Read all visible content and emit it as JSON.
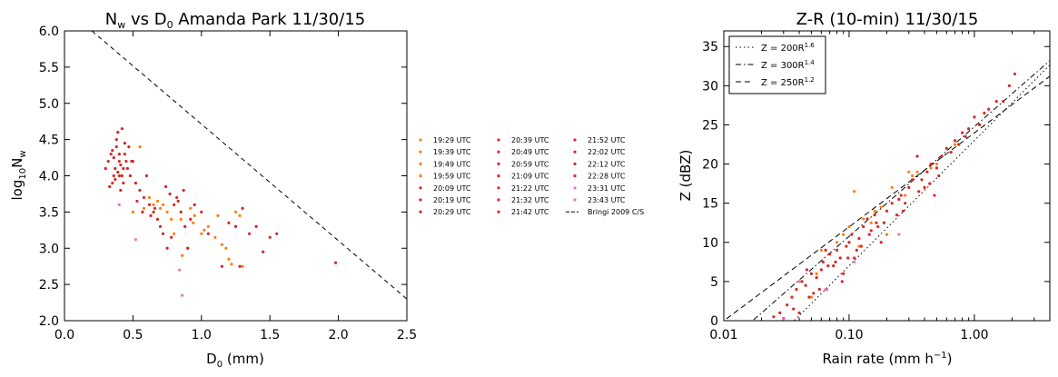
{
  "chart_data": [
    {
      "type": "scatter",
      "title": "N_w vs D_0 Amanda Park 11/30/15",
      "xlabel": "D_0 (mm)",
      "ylabel": "log10 N_w",
      "xlim": [
        0.0,
        2.5
      ],
      "ylim": [
        2.0,
        6.0
      ],
      "xticks": [
        "0.0",
        "0.5",
        "1.0",
        "1.5",
        "2.0",
        "2.5"
      ],
      "yticks": [
        "2.0",
        "2.5",
        "3.0",
        "3.5",
        "4.0",
        "4.5",
        "5.0",
        "5.5",
        "6.0"
      ],
      "legend_position": "right-outside",
      "legend_entries": [
        "19:29 UTC",
        "19:39 UTC",
        "19:49 UTC",
        "19:59 UTC",
        "20:09 UTC",
        "20:19 UTC",
        "20:29 UTC",
        "20:39 UTC",
        "20:49 UTC",
        "20:59 UTC",
        "21:09 UTC",
        "21:22 UTC",
        "21:32 UTC",
        "21:42 UTC",
        "21:52 UTC",
        "22:02 UTC",
        "22:12 UTC",
        "22:28 UTC",
        "23:31 UTC",
        "23:43 UTC",
        "Bringi 2009 C/S"
      ],
      "line": {
        "name": "Bringi 2009 C/S",
        "x": [
          0.2,
          2.5
        ],
        "y": [
          6.0,
          2.3
        ],
        "style": "dashed"
      },
      "series": [
        {
          "name": "orange-group",
          "color": "#ff7f0e",
          "x": [
            0.55,
            0.62,
            0.68,
            0.72,
            0.75,
            0.8,
            0.85,
            0.88,
            0.9,
            0.92,
            0.95,
            1.0,
            1.05,
            1.1,
            1.15,
            1.2,
            1.22,
            1.25,
            1.28,
            1.3,
            0.65,
            0.7,
            0.78,
            0.86,
            0.94,
            1.02,
            1.12,
            1.18,
            0.5,
            0.58
          ],
          "y": [
            4.4,
            3.7,
            3.65,
            3.6,
            3.5,
            3.2,
            3.4,
            3.3,
            3.0,
            3.55,
            3.45,
            3.2,
            3.3,
            3.15,
            3.05,
            2.85,
            2.78,
            3.5,
            3.45,
            2.75,
            3.6,
            3.55,
            3.4,
            2.9,
            3.35,
            3.25,
            3.45,
            3.0,
            3.5,
            3.55
          ]
        },
        {
          "name": "red-group",
          "color": "#d62728",
          "x": [
            0.3,
            0.32,
            0.34,
            0.35,
            0.36,
            0.37,
            0.38,
            0.38,
            0.39,
            0.4,
            0.4,
            0.41,
            0.42,
            0.42,
            0.43,
            0.44,
            0.45,
            0.36,
            0.39,
            0.41,
            0.33,
            0.37,
            0.4,
            0.43,
            0.46,
            0.48,
            0.5,
            0.52,
            0.55,
            0.58,
            0.6,
            0.62,
            0.65,
            0.68,
            0.7,
            0.72,
            0.75,
            0.78,
            0.8,
            0.82,
            0.85,
            0.88,
            0.9,
            0.95,
            1.0,
            1.05,
            1.2,
            1.25,
            1.3,
            1.35,
            1.4,
            1.45,
            1.5,
            1.55,
            1.98,
            0.47,
            0.53,
            0.57,
            0.63,
            0.66,
            0.74,
            0.77,
            0.83,
            0.87,
            0.92,
            1.15,
            1.28,
            0.35,
            0.44,
            0.49
          ],
          "y": [
            4.1,
            4.2,
            4.3,
            3.9,
            4.0,
            4.1,
            4.4,
            4.5,
            4.6,
            4.2,
            4.3,
            3.8,
            4.0,
            4.65,
            4.1,
            4.3,
            4.2,
            4.25,
            4.05,
            4.15,
            3.85,
            3.95,
            4.0,
            3.9,
            4.1,
            4.0,
            4.2,
            3.9,
            3.8,
            3.7,
            4.0,
            3.6,
            3.5,
            3.4,
            3.3,
            3.2,
            3.0,
            3.15,
            3.6,
            3.7,
            3.5,
            3.3,
            3.0,
            3.6,
            3.5,
            3.2,
            3.35,
            3.3,
            3.55,
            3.2,
            3.3,
            2.95,
            3.15,
            3.2,
            2.8,
            4.4,
            3.65,
            3.5,
            3.45,
            3.55,
            3.85,
            3.75,
            3.65,
            3.8,
            3.4,
            2.75,
            2.75,
            4.35,
            4.45,
            4.2
          ]
        },
        {
          "name": "pink-group",
          "color": "#e377c2",
          "x": [
            0.4,
            0.52,
            0.84,
            0.86
          ],
          "y": [
            3.6,
            3.12,
            2.7,
            2.35
          ]
        }
      ]
    },
    {
      "type": "scatter",
      "title": "Z-R (10-min) 11/30/15",
      "xlabel": "Rain rate (mm h⁻¹)",
      "ylabel": "Z (dBZ)",
      "xscale": "log",
      "xlim": [
        0.01,
        4.0
      ],
      "ylim": [
        0,
        37
      ],
      "xticks": [
        "0.01",
        "0.10",
        "1.00"
      ],
      "yticks": [
        "0",
        "5",
        "10",
        "15",
        "20",
        "25",
        "30",
        "35"
      ],
      "legend_position": "top-left",
      "legend_entries": [
        {
          "label": "Z = 200R",
          "exp": "1.6",
          "style": "dotted",
          "a": 200,
          "b": 1.6
        },
        {
          "label": "Z = 300R",
          "exp": "1.4",
          "style": "dashdot",
          "a": 300,
          "b": 1.4
        },
        {
          "label": "Z = 250R",
          "exp": "1.2",
          "style": "dashed",
          "a": 250,
          "b": 1.2
        }
      ],
      "series": [
        {
          "name": "orange-group",
          "color": "#ff7f0e",
          "x": [
            0.055,
            0.07,
            0.09,
            0.11,
            0.13,
            0.16,
            0.18,
            0.22,
            0.25,
            0.3,
            0.35,
            0.4,
            0.5,
            0.7,
            0.06,
            0.08,
            0.1,
            0.12,
            0.15,
            0.2,
            0.28,
            0.32,
            0.45,
            0.05
          ],
          "y": [
            6,
            8.5,
            11,
            16.5,
            13,
            14,
            14.5,
            17,
            15.5,
            19,
            19,
            17,
            20,
            22.5,
            9,
            10,
            12,
            9.5,
            12.5,
            11,
            16,
            18.5,
            19.5,
            3
          ]
        },
        {
          "name": "red-group",
          "color": "#d62728",
          "x": [
            0.025,
            0.028,
            0.03,
            0.032,
            0.035,
            0.038,
            0.04,
            0.042,
            0.045,
            0.048,
            0.05,
            0.052,
            0.055,
            0.058,
            0.06,
            0.062,
            0.065,
            0.068,
            0.07,
            0.075,
            0.08,
            0.085,
            0.09,
            0.095,
            0.1,
            0.105,
            0.11,
            0.115,
            0.12,
            0.13,
            0.14,
            0.15,
            0.16,
            0.17,
            0.18,
            0.19,
            0.2,
            0.22,
            0.24,
            0.26,
            0.28,
            0.3,
            0.32,
            0.35,
            0.38,
            0.4,
            0.42,
            0.45,
            0.48,
            0.5,
            0.55,
            0.6,
            0.7,
            0.8,
            0.9,
            1.0,
            1.1,
            1.3,
            1.5,
            1.7,
            1.9,
            2.1,
            0.036,
            0.046,
            0.066,
            0.078,
            0.088,
            0.098,
            0.125,
            0.145,
            0.165,
            0.25,
            0.27,
            0.36,
            0.44,
            0.52,
            0.65,
            0.75,
            0.85,
            1.2
          ],
          "y": [
            0.5,
            1,
            0.3,
            2,
            3,
            4,
            1,
            5,
            4.5,
            3,
            6,
            3.5,
            5.5,
            4,
            6.5,
            7.5,
            9,
            7,
            8.5,
            7,
            9,
            8,
            6,
            9.5,
            10,
            11,
            8,
            9,
            10.5,
            12,
            13,
            11.5,
            13.5,
            12,
            10,
            12.5,
            14,
            15,
            13.5,
            16,
            15,
            17,
            18,
            21,
            18,
            17,
            19,
            20,
            16,
            19.5,
            21,
            22,
            23,
            24,
            24.5,
            26,
            25,
            27,
            28,
            28,
            30,
            31.5,
            1.5,
            6.5,
            4,
            7.5,
            5,
            8,
            9.5,
            11,
            12.5,
            15.5,
            14,
            16.5,
            17.5,
            18.5,
            21.5,
            22.5,
            23.5,
            26.5
          ]
        },
        {
          "name": "pink-group",
          "color": "#e377c2",
          "x": [
            0.03,
            0.065,
            0.11,
            0.25,
            0.04
          ],
          "y": [
            0.2,
            4,
            7.5,
            11,
            5
          ]
        }
      ]
    }
  ]
}
